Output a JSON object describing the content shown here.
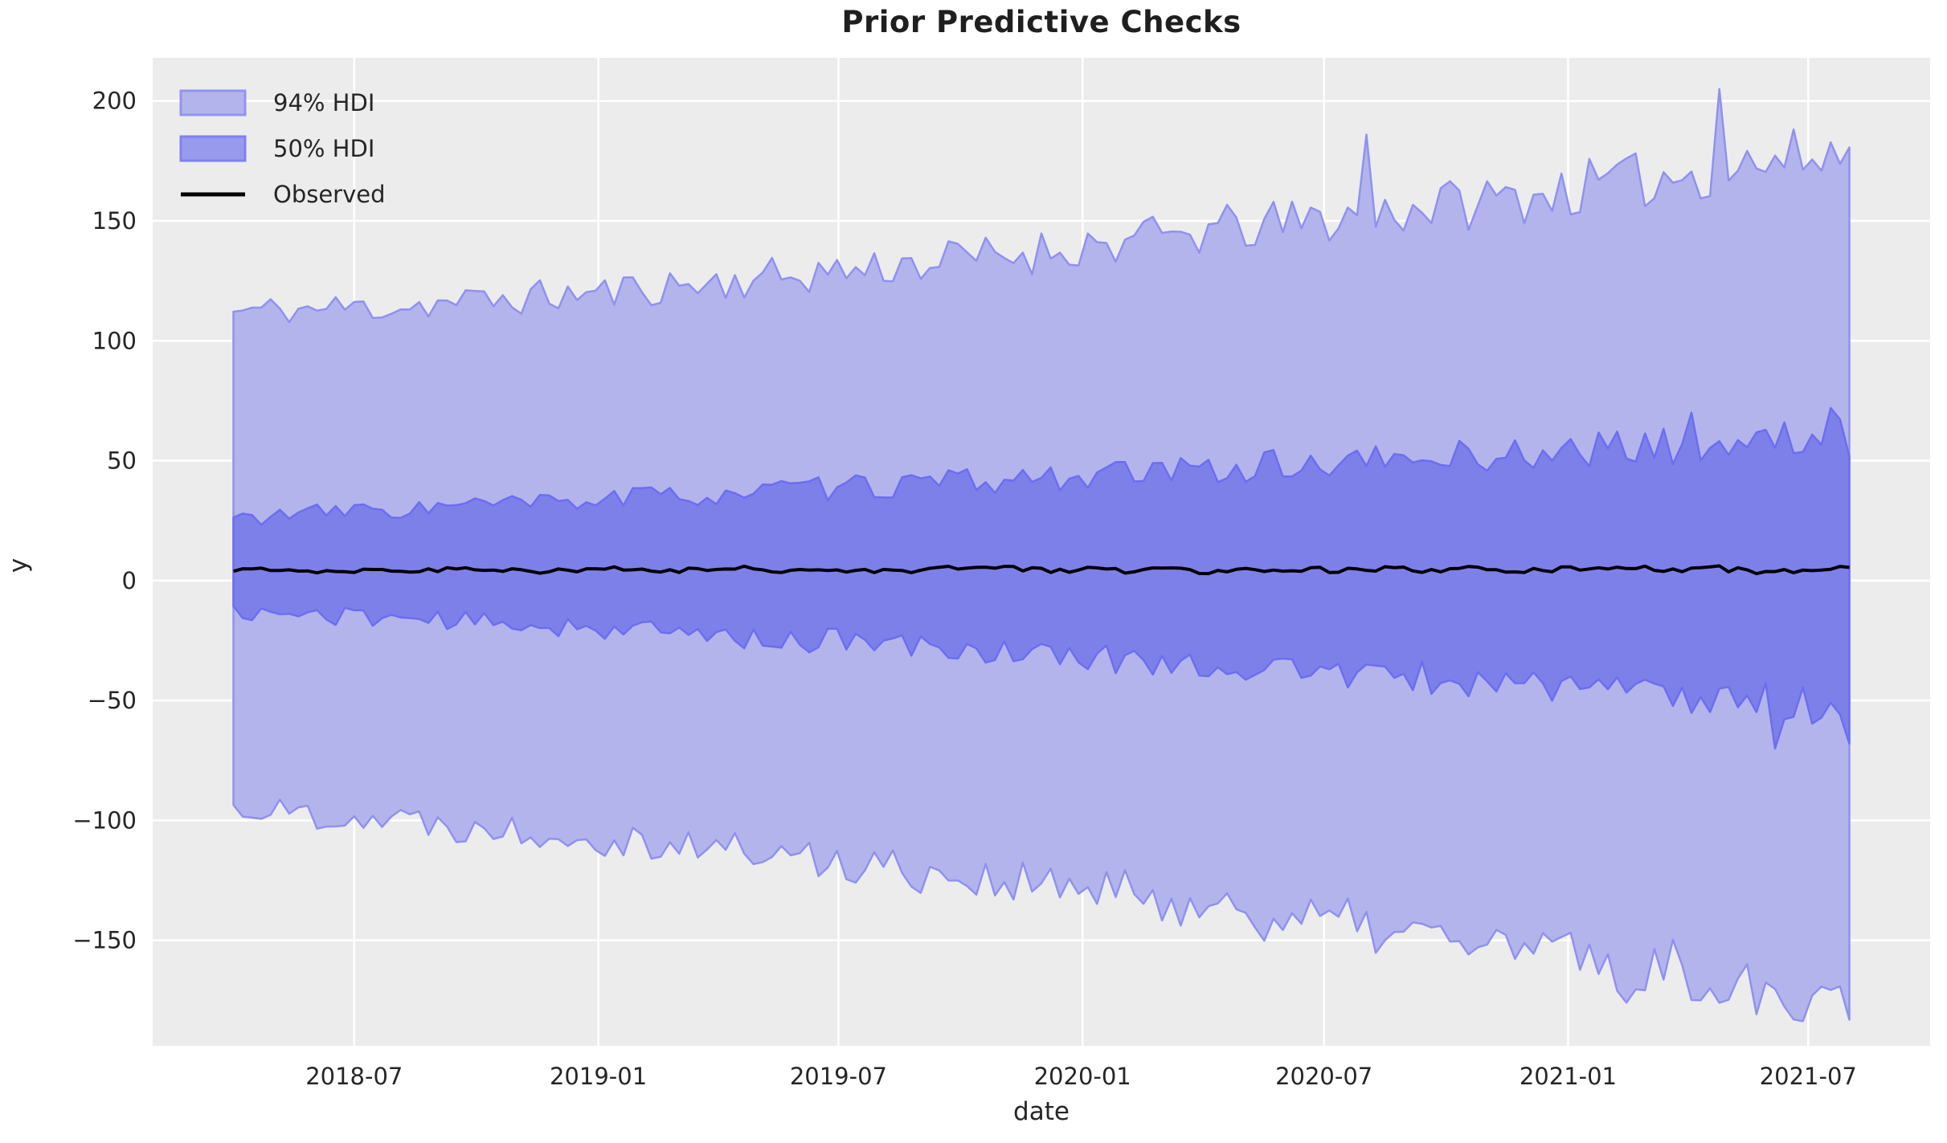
{
  "title": "Prior Predictive Checks",
  "axes": {
    "xlabel": "date",
    "ylabel": "y",
    "background_color": "#ececec",
    "grid_color": "#ffffff",
    "tick_color": "#262626",
    "y_domain": [
      -194,
      218
    ],
    "x_domain_weeks": [
      -8.7,
      182.7
    ],
    "y_ticks": [
      {
        "value": 200,
        "label": "200"
      },
      {
        "value": 150,
        "label": "150"
      },
      {
        "value": 100,
        "label": "100"
      },
      {
        "value": 50,
        "label": "50"
      },
      {
        "value": 0,
        "label": "0"
      },
      {
        "value": -50,
        "label": "−50"
      },
      {
        "value": -100,
        "label": "−100"
      },
      {
        "value": -150,
        "label": "−150"
      }
    ],
    "x_ticks": [
      {
        "week": 13.0,
        "label": "2018-07"
      },
      {
        "week": 39.286,
        "label": "2019-01"
      },
      {
        "week": 65.143,
        "label": "2019-07"
      },
      {
        "week": 91.429,
        "label": "2020-01"
      },
      {
        "week": 117.429,
        "label": "2020-07"
      },
      {
        "week": 143.714,
        "label": "2021-01"
      },
      {
        "week": 169.571,
        "label": "2021-07"
      }
    ]
  },
  "legend": [
    {
      "label": "94% HDI",
      "type": "patch",
      "fill": "#b3b4ec",
      "stroke": "#9294f0"
    },
    {
      "label": "50% HDI",
      "type": "patch",
      "fill": "#989aee",
      "stroke": "#7f81f0"
    },
    {
      "label": "Observed",
      "type": "line",
      "color": "#000000"
    }
  ],
  "colors": {
    "hdi94_fill": "#b3b4ec",
    "hdi94_edge": "#8f91f0",
    "hdi50_fill": "#7e80e9",
    "hdi50_edge": "#6b6ef0",
    "observed_line": "#000000"
  },
  "chart_data": {
    "type": "area",
    "title": "Prior Predictive Checks",
    "xlabel": "date",
    "ylabel": "y",
    "x_start_date": "2018-04-01",
    "x_interval": "weekly",
    "n_points": 175,
    "ylim": [
      -194,
      218
    ],
    "legend_position": "upper left",
    "grid": true,
    "note": "Envelope values estimated from gridlines; samples given every 4 weeks, weekly jitter amplitude noise_base+noise_growth*f added between samples.",
    "series": [
      {
        "name": "hdi94_upper",
        "seed": 11,
        "noise_base": 6,
        "noise_growth": 7,
        "samples_every_4_weeks": [
          112,
          113,
          113,
          114,
          114,
          115,
          116,
          117,
          118,
          119,
          120,
          122,
          123,
          124,
          126,
          127,
          129,
          130,
          132,
          133,
          135,
          136,
          138,
          140,
          141,
          143,
          145,
          147,
          148,
          150,
          152,
          154,
          156,
          157,
          159,
          161,
          163,
          165,
          167,
          169,
          172,
          174,
          176,
          178,
          180
        ]
      },
      {
        "name": "hdi94_lower",
        "seed": 22,
        "noise_base": 6,
        "noise_growth": 8,
        "samples_every_4_weeks": [
          -95,
          -96,
          -97,
          -98,
          -99,
          -100,
          -102,
          -103,
          -104,
          -105,
          -107,
          -108,
          -110,
          -111,
          -113,
          -115,
          -117,
          -118,
          -120,
          -122,
          -124,
          -126,
          -128,
          -129,
          -131,
          -133,
          -135,
          -137,
          -140,
          -142,
          -144,
          -146,
          -148,
          -150,
          -152,
          -155,
          -157,
          -159,
          -161,
          -163,
          -166,
          -168,
          -170,
          -172,
          -175
        ]
      },
      {
        "name": "hdi50_upper",
        "seed": 33,
        "noise_base": 3.5,
        "noise_growth": 4.5,
        "samples_every_4_weeks": [
          26,
          27,
          28,
          29,
          29,
          30,
          31,
          32,
          32,
          33,
          34,
          35,
          35,
          36,
          37,
          38,
          38,
          39,
          40,
          41,
          41,
          42,
          43,
          44,
          44,
          45,
          46,
          47,
          48,
          48,
          49,
          50,
          51,
          52,
          52,
          53,
          54,
          55,
          56,
          56,
          57,
          58,
          59,
          59,
          60
        ]
      },
      {
        "name": "hdi50_lower",
        "seed": 44,
        "noise_base": 3.5,
        "noise_growth": 5,
        "samples_every_4_weeks": [
          -13,
          -14,
          -14,
          -15,
          -15,
          -16,
          -17,
          -18,
          -18,
          -19,
          -20,
          -21,
          -22,
          -23,
          -24,
          -25,
          -25,
          -26,
          -27,
          -28,
          -29,
          -30,
          -31,
          -32,
          -33,
          -34,
          -35,
          -36,
          -37,
          -38,
          -39,
          -40,
          -41,
          -42,
          -42,
          -43,
          -44,
          -45,
          -47,
          -48,
          -49,
          -50,
          -51,
          -53,
          -55
        ]
      },
      {
        "name": "observed",
        "seed": 55,
        "noise_base": 0.9,
        "noise_growth": 0.4,
        "samples_every_4_weeks": [
          4,
          5,
          4,
          4,
          5,
          4,
          5,
          5,
          4,
          4,
          5,
          4,
          4,
          5,
          5,
          4,
          5,
          4,
          4,
          5,
          6,
          5,
          4,
          5,
          4,
          5,
          4,
          4,
          5,
          5,
          4,
          5,
          4,
          5,
          4,
          4,
          5,
          6,
          5,
          4,
          5,
          4,
          4,
          5,
          4
        ]
      }
    ],
    "spikes": [
      {
        "series": "hdi94_upper",
        "week": 160,
        "value": 205
      },
      {
        "series": "hdi94_upper",
        "week": 122,
        "value": 186
      },
      {
        "series": "hdi94_lower",
        "week": 168,
        "value": -183
      },
      {
        "series": "hdi94_lower",
        "week": 150,
        "value": -176
      },
      {
        "series": "hdi50_upper",
        "week": 172,
        "value": 72
      },
      {
        "series": "hdi50_upper",
        "week": 157,
        "value": 70
      },
      {
        "series": "hdi50_lower",
        "week": 166,
        "value": -70
      },
      {
        "series": "hdi50_lower",
        "week": 174,
        "value": -68
      }
    ]
  }
}
